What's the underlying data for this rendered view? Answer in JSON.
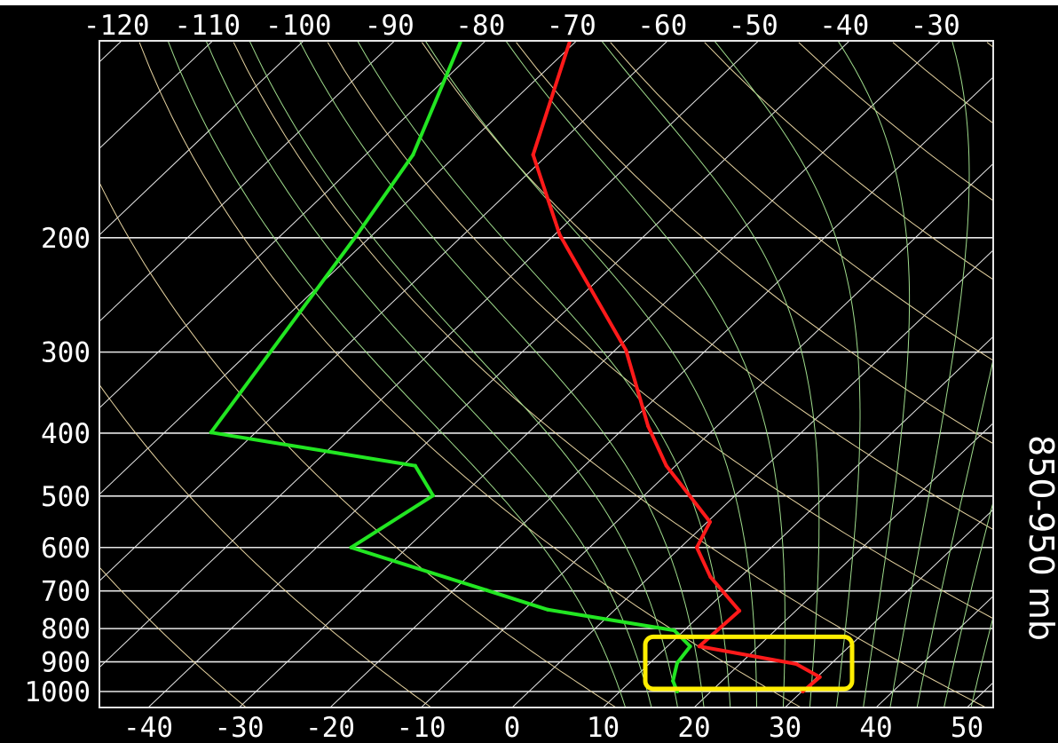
{
  "chart_data": {
    "type": "line",
    "subtype": "skew-T log-P diagram",
    "title": "",
    "xlabel": "",
    "ylabel": "",
    "y_scale": "log (pressure, mb, decreasing upward)",
    "ylim": [
      1050,
      100
    ],
    "xlim_bottom": [
      -45,
      53
    ],
    "grid": true,
    "background": "#000000",
    "left_ticks": [
      "200",
      "300",
      "400",
      "500",
      "600",
      "700",
      "800",
      "900",
      "1000"
    ],
    "left_tick_values": [
      200,
      300,
      400,
      500,
      600,
      700,
      800,
      900,
      1000
    ],
    "bottom_ticks": [
      "-40",
      "-30",
      "-20",
      "-10",
      "0",
      "10",
      "20",
      "30",
      "40",
      "50"
    ],
    "bottom_tick_values": [
      -40,
      -30,
      -20,
      -10,
      0,
      10,
      20,
      30,
      40,
      50
    ],
    "top_ticks": [
      "-120",
      "-110",
      "-100",
      "-90",
      "-80",
      "-70",
      "-60",
      "-50",
      "-40",
      "-30"
    ],
    "top_tick_values": [
      -120,
      -110,
      -100,
      -90,
      -80,
      -70,
      -60,
      -50,
      -40,
      -30
    ],
    "series": [
      {
        "color": "#ff1a1a",
        "points": [
          {
            "p": 1000,
            "t": 30.1
          },
          {
            "p": 950,
            "t": 30.3
          },
          {
            "p": 907,
            "t": 26.2
          },
          {
            "p": 852,
            "t": 13.5
          },
          {
            "p": 751,
            "t": 13.8
          },
          {
            "p": 666,
            "t": 6.7
          },
          {
            "p": 600,
            "t": 1.8
          },
          {
            "p": 548,
            "t": 0.3
          },
          {
            "p": 449,
            "t": -11.0
          },
          {
            "p": 390,
            "t": -17.6
          },
          {
            "p": 298,
            "t": -28.8
          },
          {
            "p": 198,
            "t": -49.4
          },
          {
            "p": 149,
            "t": -61.6
          },
          {
            "p": 100,
            "t": -70.6
          }
        ]
      },
      {
        "color": "#22e622",
        "points": [
          {
            "p": 1000,
            "t": 16.3
          },
          {
            "p": 963,
            "t": 14.6
          },
          {
            "p": 904,
            "t": 13.0
          },
          {
            "p": 852,
            "t": 12.5
          },
          {
            "p": 805,
            "t": 8.9
          },
          {
            "p": 748,
            "t": -7.4
          },
          {
            "p": 698,
            "t": -16.4
          },
          {
            "p": 600,
            "t": -36.2
          },
          {
            "p": 499,
            "t": -33.2
          },
          {
            "p": 449,
            "t": -38.6
          },
          {
            "p": 399,
            "t": -64.9
          },
          {
            "p": 198,
            "t": -71.7
          },
          {
            "p": 149,
            "t": -74.8
          },
          {
            "p": 100,
            "t": -82.6
          }
        ]
      }
    ],
    "colors": {
      "isotherms": "#e8e8e8",
      "isobars": "#e8e8e8",
      "dry_adiabats": "#e6d3a0",
      "moist_adiabats": "#9fdc8c",
      "highlight_box": "#ffee00"
    },
    "annotations": [
      {
        "text": "850-950 mb",
        "type": "highlight box spanning 850-950 mb layer",
        "p_range": [
          850,
          960
        ],
        "t_range": [
          13,
          36
        ]
      }
    ]
  }
}
